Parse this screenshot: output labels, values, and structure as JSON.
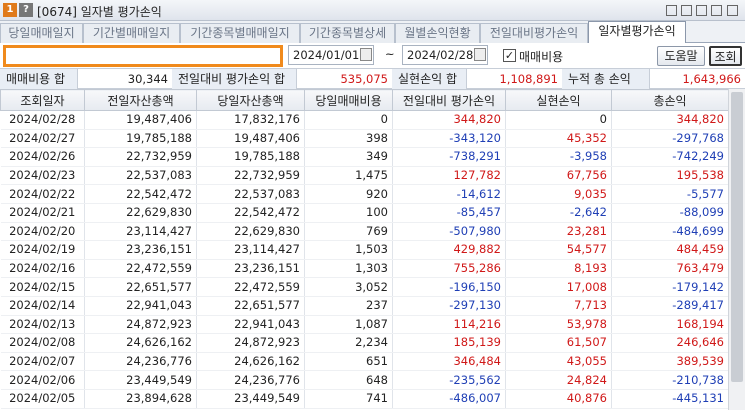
{
  "window": {
    "badge": "1",
    "help": "?",
    "title": "[0674] 일자별 평가손익"
  },
  "tabs": [
    "당일매매일지",
    "기간별매매일지",
    "기간종목별매매일지",
    "기간종목별상세",
    "월별손익현황",
    "전일대비평가손익",
    "일자별평가손익"
  ],
  "filter": {
    "start_date": "2024/01/01",
    "tilde": "~",
    "end_date": "2024/02/28",
    "checkbox_label": "매매비용",
    "checked": true,
    "buttons": [
      "도움말",
      "조회"
    ]
  },
  "summary": [
    {
      "label": "매매비용 합",
      "value": "30,344"
    },
    {
      "label": "전일대비 평가손익 합",
      "value": "535,075"
    },
    {
      "label": "실현손익 합",
      "value": "1,108,891"
    },
    {
      "label": "누적 총 손익",
      "value": "1,643,966"
    }
  ],
  "table": {
    "columns": [
      "조회일자",
      "전일자산총액",
      "당일자산총액",
      "당일매매비용",
      "전일대비 평가손익",
      "실현손익",
      "총손익"
    ],
    "rows": [
      [
        "2024/02/28",
        "19,487,406",
        "17,832,176",
        "0",
        "344,820",
        "0",
        "344,820"
      ],
      [
        "2024/02/27",
        "19,785,188",
        "19,487,406",
        "398",
        "-343,120",
        "45,352",
        "-297,768"
      ],
      [
        "2024/02/26",
        "22,732,959",
        "19,785,188",
        "349",
        "-738,291",
        "-3,958",
        "-742,249"
      ],
      [
        "2024/02/23",
        "22,537,083",
        "22,732,959",
        "1,475",
        "127,782",
        "67,756",
        "195,538"
      ],
      [
        "2024/02/22",
        "22,542,472",
        "22,537,083",
        "920",
        "-14,612",
        "9,035",
        "-5,577"
      ],
      [
        "2024/02/21",
        "22,629,830",
        "22,542,472",
        "100",
        "-85,457",
        "-2,642",
        "-88,099"
      ],
      [
        "2024/02/20",
        "23,114,427",
        "22,629,830",
        "769",
        "-507,980",
        "23,281",
        "-484,699"
      ],
      [
        "2024/02/19",
        "23,236,151",
        "23,114,427",
        "1,503",
        "429,882",
        "54,577",
        "484,459"
      ],
      [
        "2024/02/16",
        "22,472,559",
        "23,236,151",
        "1,303",
        "755,286",
        "8,193",
        "763,479"
      ],
      [
        "2024/02/15",
        "22,651,577",
        "22,472,559",
        "3,052",
        "-196,150",
        "17,008",
        "-179,142"
      ],
      [
        "2024/02/14",
        "22,941,043",
        "22,651,577",
        "237",
        "-297,130",
        "7,713",
        "-289,417"
      ],
      [
        "2024/02/13",
        "24,872,923",
        "22,941,043",
        "1,087",
        "114,216",
        "53,978",
        "168,194"
      ],
      [
        "2024/02/08",
        "24,626,162",
        "24,872,923",
        "2,234",
        "185,139",
        "61,507",
        "246,646"
      ],
      [
        "2024/02/07",
        "24,236,776",
        "24,626,162",
        "651",
        "346,484",
        "43,055",
        "389,539"
      ],
      [
        "2024/02/06",
        "23,449,549",
        "24,236,776",
        "648",
        "-235,562",
        "24,824",
        "-210,738"
      ],
      [
        "2024/02/05",
        "23,894,628",
        "23,449,549",
        "741",
        "-486,007",
        "40,876",
        "-445,131"
      ]
    ]
  }
}
